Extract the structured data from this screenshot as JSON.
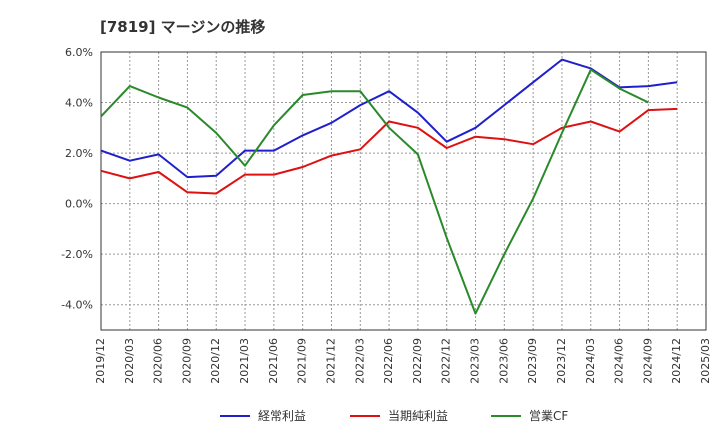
{
  "chart_data": {
    "type": "line",
    "title": "[7819]  マージンの推移",
    "x": [
      "2019/12",
      "2020/03",
      "2020/06",
      "2020/09",
      "2020/12",
      "2021/03",
      "2021/06",
      "2021/09",
      "2021/12",
      "2022/03",
      "2022/06",
      "2022/09",
      "2022/12",
      "2023/03",
      "2023/06",
      "2023/09",
      "2023/12",
      "2024/03",
      "2024/06",
      "2024/09",
      "2024/12",
      "2025/03"
    ],
    "ylim": [
      -5.0,
      6.0
    ],
    "yticks": [
      "6.0%",
      "4.0%",
      "2.0%",
      "0.0%",
      "-2.0%",
      "-4.0%"
    ],
    "ytick_values": [
      6,
      4,
      2,
      0,
      -2,
      -4
    ],
    "grid": true,
    "legend": "bottom",
    "series": [
      {
        "name": "経常利益",
        "color": "#1f1fcc",
        "values": [
          2.1,
          1.7,
          1.95,
          1.05,
          1.1,
          2.1,
          2.1,
          2.7,
          3.2,
          3.9,
          4.45,
          3.6,
          2.45,
          3.0,
          3.9,
          4.8,
          5.7,
          5.35,
          4.6,
          4.65,
          4.8,
          null
        ]
      },
      {
        "name": "当期純利益",
        "color": "#dd1111",
        "values": [
          1.3,
          1.0,
          1.25,
          0.45,
          0.4,
          1.15,
          1.15,
          1.45,
          1.9,
          2.15,
          3.25,
          3.0,
          2.2,
          2.65,
          2.55,
          2.35,
          3.0,
          3.25,
          2.85,
          3.7,
          3.75,
          null
        ]
      },
      {
        "name": "営業CF",
        "color": "#2a8a2a",
        "values": [
          3.45,
          4.65,
          4.2,
          3.8,
          2.8,
          1.5,
          3.1,
          4.3,
          4.45,
          4.45,
          3.0,
          1.95,
          -1.35,
          -4.35,
          -2.0,
          0.2,
          2.8,
          5.3,
          4.55,
          4.0,
          null,
          null
        ]
      }
    ]
  }
}
